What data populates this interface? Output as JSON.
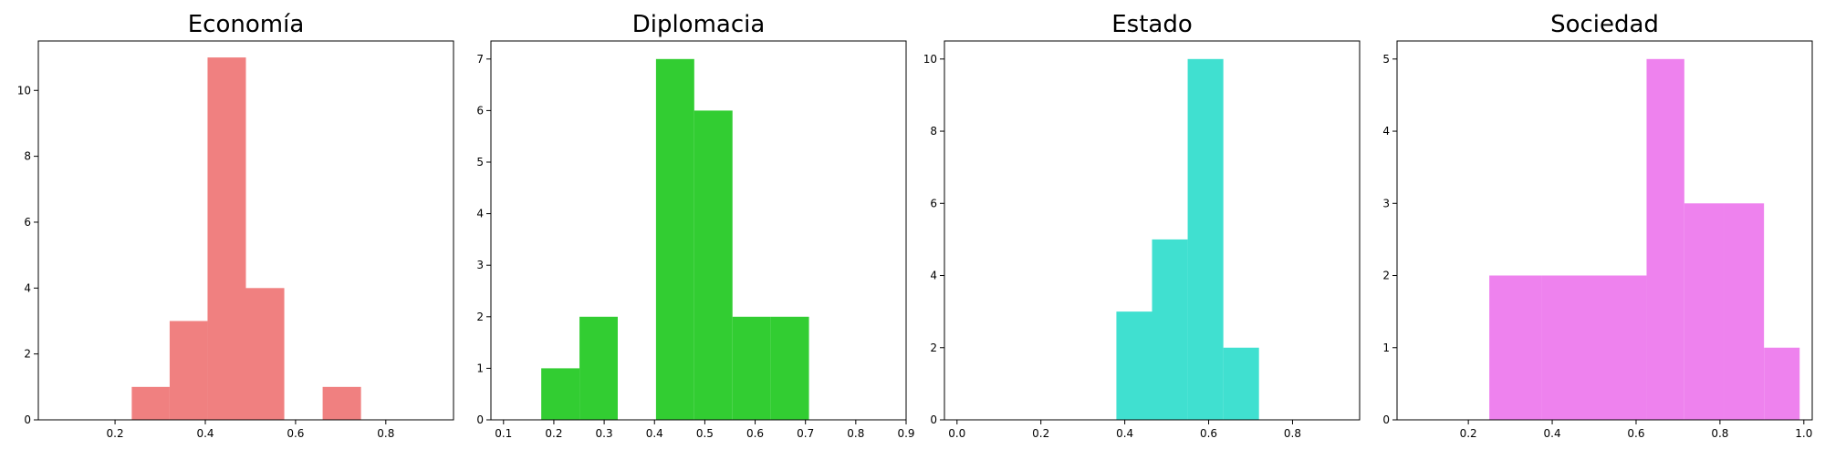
{
  "chart_data": [
    {
      "type": "histogram",
      "title": "Economía",
      "xlabel": "",
      "ylabel": "",
      "xlim": [
        0.03,
        0.95
      ],
      "ylim": [
        0,
        11.5
      ],
      "xticks": [
        0.2,
        0.4,
        0.6,
        0.8
      ],
      "xtick_labels": [
        "0.2",
        "0.4",
        "0.6",
        "0.8"
      ],
      "yticks": [
        0,
        2,
        4,
        6,
        8,
        10
      ],
      "ytick_labels": [
        "0",
        "2",
        "4",
        "6",
        "8",
        "10"
      ],
      "grid": false,
      "color": "#F08080",
      "bins": [
        {
          "x0": 0.237,
          "x1": 0.321,
          "count": 1
        },
        {
          "x0": 0.321,
          "x1": 0.405,
          "count": 3
        },
        {
          "x0": 0.405,
          "x1": 0.49,
          "count": 11
        },
        {
          "x0": 0.49,
          "x1": 0.575,
          "count": 4
        },
        {
          "x0": 0.575,
          "x1": 0.66,
          "count": 0
        },
        {
          "x0": 0.66,
          "x1": 0.745,
          "count": 1
        }
      ]
    },
    {
      "type": "histogram",
      "title": "Diplomacia",
      "xlabel": "",
      "ylabel": "",
      "xlim": [
        0.075,
        0.9
      ],
      "ylim": [
        0,
        7.35
      ],
      "xticks": [
        0.1,
        0.2,
        0.3,
        0.4,
        0.5,
        0.6,
        0.7,
        0.8,
        0.9
      ],
      "xtick_labels": [
        "0.1",
        "0.2",
        "0.3",
        "0.4",
        "0.5",
        "0.6",
        "0.7",
        "0.8",
        "0.9"
      ],
      "yticks": [
        0,
        1,
        2,
        3,
        4,
        5,
        6,
        7
      ],
      "ytick_labels": [
        "0",
        "1",
        "2",
        "3",
        "4",
        "5",
        "6",
        "7"
      ],
      "grid": false,
      "color": "#32CD32",
      "bins": [
        {
          "x0": 0.175,
          "x1": 0.251,
          "count": 1
        },
        {
          "x0": 0.251,
          "x1": 0.327,
          "count": 2
        },
        {
          "x0": 0.327,
          "x1": 0.403,
          "count": 0
        },
        {
          "x0": 0.403,
          "x1": 0.479,
          "count": 7
        },
        {
          "x0": 0.479,
          "x1": 0.555,
          "count": 6
        },
        {
          "x0": 0.555,
          "x1": 0.631,
          "count": 2
        },
        {
          "x0": 0.631,
          "x1": 0.707,
          "count": 2
        }
      ]
    },
    {
      "type": "histogram",
      "title": "Estado",
      "xlabel": "",
      "ylabel": "",
      "xlim": [
        -0.03,
        0.96
      ],
      "ylim": [
        0,
        10.5
      ],
      "xticks": [
        0.0,
        0.2,
        0.4,
        0.6,
        0.8
      ],
      "xtick_labels": [
        "0.0",
        "0.2",
        "0.4",
        "0.6",
        "0.8"
      ],
      "yticks": [
        0,
        2,
        4,
        6,
        8,
        10
      ],
      "ytick_labels": [
        "0",
        "2",
        "4",
        "6",
        "8",
        "10"
      ],
      "grid": false,
      "color": "#40E0D0",
      "bins": [
        {
          "x0": 0.38,
          "x1": 0.465,
          "count": 3
        },
        {
          "x0": 0.465,
          "x1": 0.55,
          "count": 5
        },
        {
          "x0": 0.55,
          "x1": 0.635,
          "count": 10
        },
        {
          "x0": 0.635,
          "x1": 0.72,
          "count": 2
        }
      ]
    },
    {
      "type": "histogram",
      "title": "Sociedad",
      "xlabel": "",
      "ylabel": "",
      "xlim": [
        0.03,
        1.02
      ],
      "ylim": [
        0,
        5.25
      ],
      "xticks": [
        0.2,
        0.4,
        0.6,
        0.8,
        1.0
      ],
      "xtick_labels": [
        "0.2",
        "0.4",
        "0.6",
        "0.8",
        "1.0"
      ],
      "yticks": [
        0,
        1,
        2,
        3,
        4,
        5
      ],
      "ytick_labels": [
        "0",
        "1",
        "2",
        "3",
        "4",
        "5"
      ],
      "grid": false,
      "color": "#EE82EE",
      "bins": [
        {
          "x0": 0.25,
          "x1": 0.375,
          "count": 2
        },
        {
          "x0": 0.375,
          "x1": 0.5,
          "count": 2
        },
        {
          "x0": 0.5,
          "x1": 0.625,
          "count": 2
        },
        {
          "x0": 0.625,
          "x1": 0.715,
          "count": 5
        },
        {
          "x0": 0.715,
          "x1": 0.81,
          "count": 3
        },
        {
          "x0": 0.81,
          "x1": 0.905,
          "count": 3
        },
        {
          "x0": 0.905,
          "x1": 0.99,
          "count": 1
        }
      ]
    }
  ]
}
